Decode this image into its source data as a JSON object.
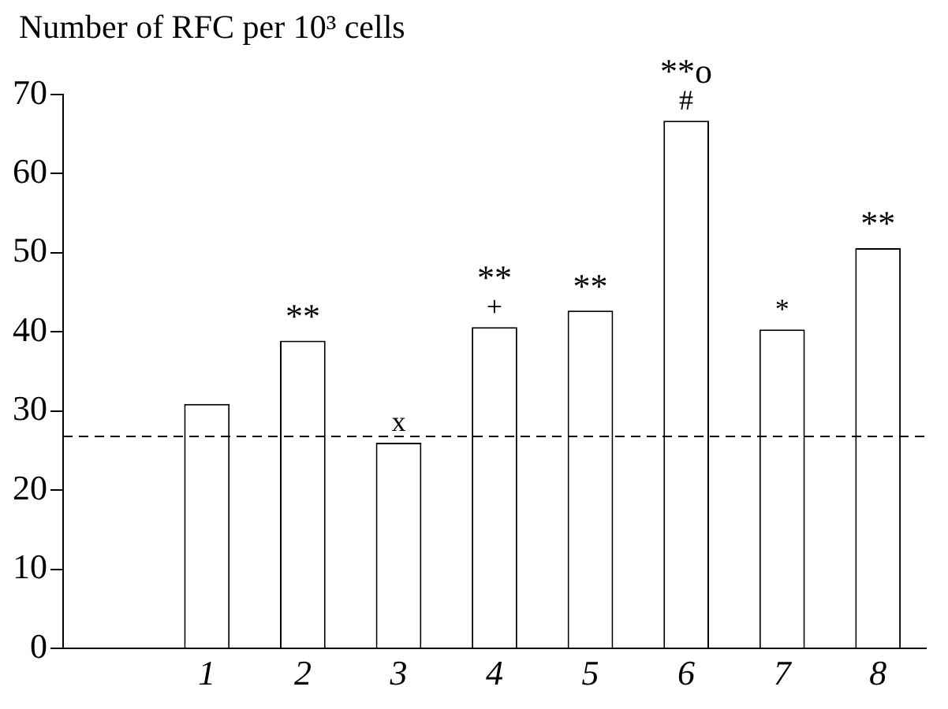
{
  "chart_data": {
    "type": "bar",
    "ylabel": "Number of RFC per 10³ cells",
    "categories": [
      null,
      "1",
      "2",
      "3",
      "4",
      "5",
      "6",
      "7",
      "8"
    ],
    "values": [
      null,
      30.9,
      38.9,
      26.0,
      40.6,
      42.7,
      66.7,
      40.3,
      50.6
    ],
    "color": "#ffffff",
    "ylim": [
      0,
      70
    ],
    "yticks": [
      0,
      10,
      20,
      30,
      40,
      50,
      60,
      70
    ],
    "grid": false,
    "legend": false,
    "ref_lines": [
      {
        "axis": "y",
        "value": 26.8,
        "line_style": "dashed",
        "color": "#000000"
      }
    ],
    "annotations": [
      {
        "text": "**",
        "x": "2",
        "y": 38.9
      },
      {
        "text": "x",
        "x": "3",
        "y": 26.0
      },
      {
        "text": "+",
        "x": "4",
        "y": 40.6
      },
      {
        "text": "**",
        "x": "4",
        "y": 40.6
      },
      {
        "text": "**",
        "x": "5",
        "y": 42.7
      },
      {
        "text": "#",
        "x": "6",
        "y": 66.7
      },
      {
        "text": "**o",
        "x": "6",
        "y": 66.7
      },
      {
        "text": "*",
        "x": "7",
        "y": 40.3
      },
      {
        "text": "**",
        "x": "8",
        "y": 50.6
      }
    ]
  }
}
